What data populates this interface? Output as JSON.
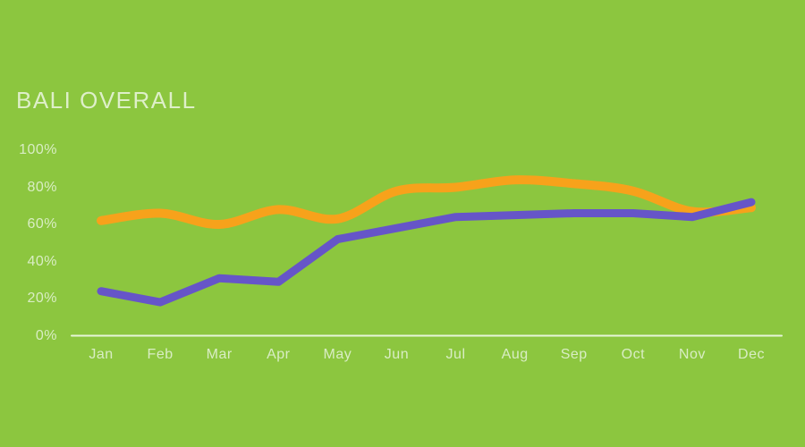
{
  "title": "BALI OVERALL",
  "colors": {
    "background": "#8CC63F",
    "title_text": "#DEEFC9",
    "axis_text": "#D9EDC4",
    "baseline": "#E6F5D8",
    "orange_line": "#F7A21B",
    "purple_line": "#6655C8"
  },
  "chart_data": {
    "type": "line",
    "title": "BALI OVERALL",
    "x": [
      "Jan",
      "Feb",
      "Mar",
      "Apr",
      "May",
      "Jun",
      "Jul",
      "Aug",
      "Sep",
      "Oct",
      "Nov",
      "Dec"
    ],
    "xlabel": "",
    "ylabel": "",
    "y_ticks": [
      "100%",
      "80%",
      "60%",
      "40%",
      "20%",
      "0%"
    ],
    "y_tick_values": [
      100,
      80,
      60,
      40,
      20,
      0
    ],
    "ylim": [
      0,
      100
    ],
    "grid": "baseline-only",
    "legend": "none",
    "series": [
      {
        "name": "orange",
        "color": "#F7A21B",
        "smooth": true,
        "stroke_width": 10,
        "values": [
          62,
          66,
          60,
          68,
          63,
          78,
          80,
          84,
          82,
          78,
          67,
          69
        ]
      },
      {
        "name": "purple",
        "color": "#6655C8",
        "smooth": false,
        "stroke_width": 9,
        "values": [
          24,
          18,
          31,
          29,
          52,
          58,
          64,
          65,
          66,
          66,
          64,
          72
        ]
      }
    ]
  }
}
